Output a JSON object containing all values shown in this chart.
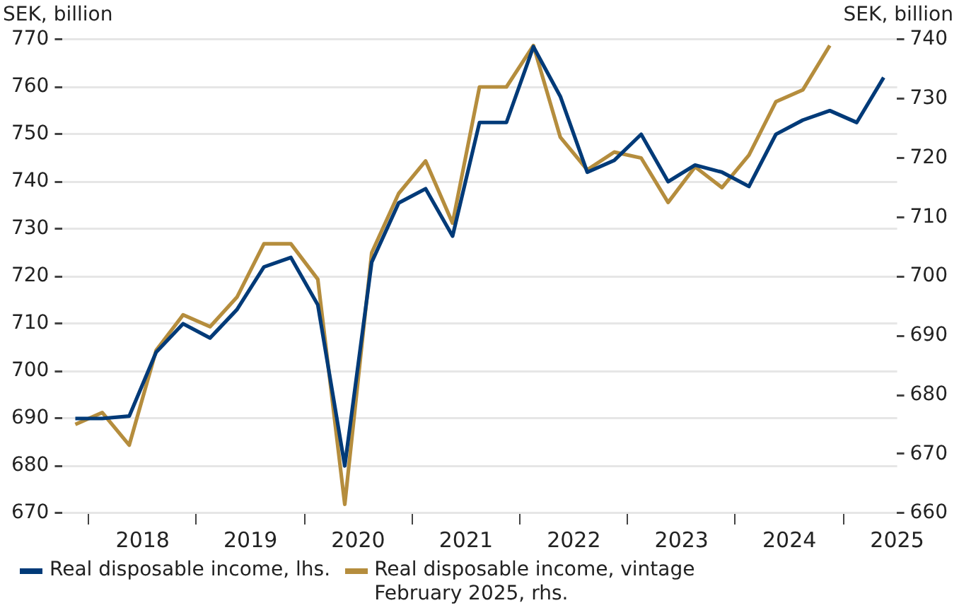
{
  "chart_data": {
    "type": "line",
    "ylabel": "SEK, billion",
    "y2label": "SEK, billion",
    "x": [
      2017.875,
      2018.125,
      2018.375,
      2018.625,
      2018.875,
      2019.125,
      2019.375,
      2019.625,
      2019.875,
      2020.125,
      2020.375,
      2020.625,
      2020.875,
      2021.125,
      2021.375,
      2021.625,
      2021.875,
      2022.125,
      2022.375,
      2022.625,
      2022.875,
      2023.125,
      2023.375,
      2023.625,
      2023.875,
      2024.125,
      2024.375,
      2024.625,
      2024.875,
      2025.125,
      2025.375
    ],
    "series": [
      {
        "name": "Real disposable income, lhs.",
        "color": "#003a78",
        "values": [
          690,
          690,
          690.5,
          704,
          710,
          707,
          713,
          722,
          724,
          714,
          680,
          723,
          735.5,
          738.5,
          728.5,
          752.5,
          752.5,
          768.5,
          758,
          742,
          744.5,
          750,
          740,
          743.5,
          742,
          739,
          750,
          753,
          755,
          752.5,
          762
        ]
      },
      {
        "name": "Real disposable income, vintage February 2025, rhs.",
        "color": "#b58d3d",
        "axis": "y2",
        "values": [
          675,
          677,
          671.5,
          687.5,
          693.5,
          691.5,
          696.5,
          705.5,
          705.5,
          699.5,
          661.5,
          704,
          714,
          719.5,
          709,
          732,
          732,
          739,
          723.5,
          718,
          721,
          720,
          712.5,
          718.5,
          715,
          720.5,
          729.5,
          731.5,
          739,
          null,
          null
        ]
      }
    ],
    "xlim": [
      2017.75,
      2025.5
    ],
    "xticks": [
      {
        "value": 2018,
        "label": null
      },
      {
        "value": 2018.5,
        "label": "2018"
      },
      {
        "value": 2019,
        "label": null
      },
      {
        "value": 2019.5,
        "label": "2019"
      },
      {
        "value": 2020,
        "label": null
      },
      {
        "value": 2020.5,
        "label": "2020"
      },
      {
        "value": 2021,
        "label": null
      },
      {
        "value": 2021.5,
        "label": "2021"
      },
      {
        "value": 2022,
        "label": null
      },
      {
        "value": 2022.5,
        "label": "2022"
      },
      {
        "value": 2023,
        "label": null
      },
      {
        "value": 2023.5,
        "label": "2023"
      },
      {
        "value": 2024,
        "label": null
      },
      {
        "value": 2024.5,
        "label": "2024"
      },
      {
        "value": 2025,
        "label": null
      },
      {
        "value": 2025.5,
        "label": "2025"
      }
    ],
    "ylim": [
      670,
      770
    ],
    "yticks": [
      670,
      680,
      690,
      700,
      710,
      720,
      730,
      740,
      750,
      760,
      770
    ],
    "y2lim": [
      660,
      740
    ],
    "y2ticks": [
      660,
      670,
      680,
      690,
      700,
      710,
      720,
      730,
      740
    ],
    "grid": "y",
    "legend": "bottom",
    "marker": "none",
    "line_style": "solid"
  }
}
